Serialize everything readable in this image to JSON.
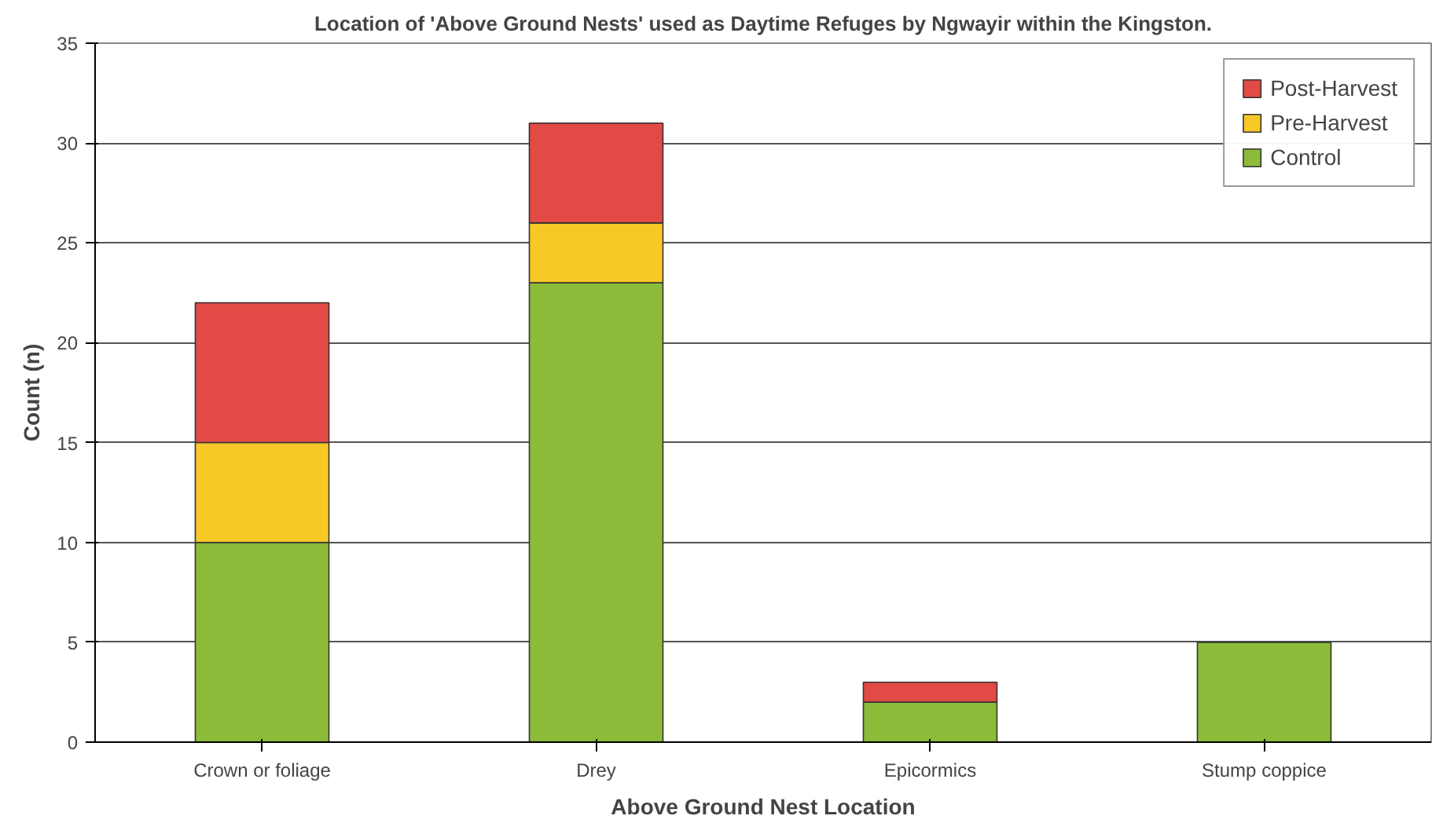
{
  "chart_data": {
    "type": "bar",
    "title": "Location of 'Above Ground Nests' used as Daytime Refuges by Ngwayir within the Kingston.",
    "xlabel": "Above Ground Nest Location",
    "ylabel": "Count (n)",
    "categories": [
      "Crown or foliage",
      "Drey",
      "Epicormics",
      "Stump coppice"
    ],
    "stacked": true,
    "series": [
      {
        "name": "Control",
        "color": "#8cbb3a",
        "values": [
          10,
          23,
          2,
          5
        ]
      },
      {
        "name": "Pre-Harvest",
        "color": "#f7c927",
        "values": [
          5,
          3,
          0,
          0
        ]
      },
      {
        "name": "Post-Harvest",
        "color": "#e24a45",
        "values": [
          7,
          5,
          1,
          0
        ]
      }
    ],
    "ylim": [
      0,
      35
    ],
    "yticks": [
      0,
      5,
      10,
      15,
      20,
      25,
      30,
      35
    ],
    "grid": "y",
    "legend": "top right"
  }
}
